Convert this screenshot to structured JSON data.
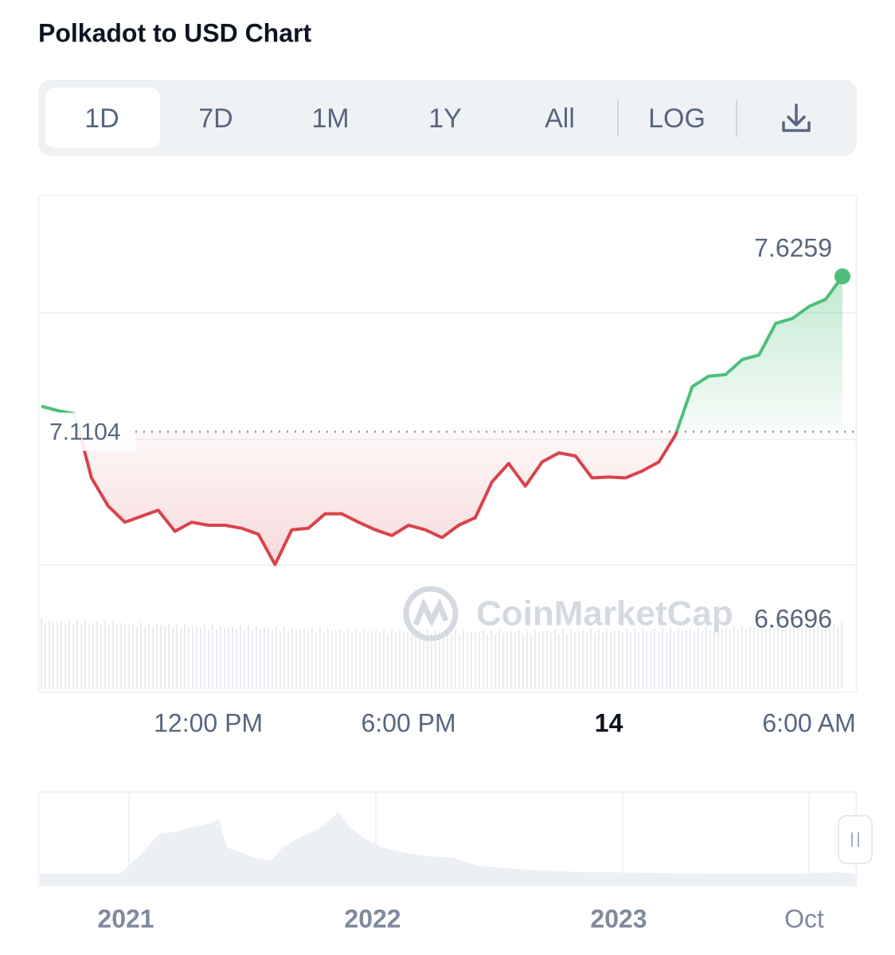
{
  "header": {
    "title": "Polkadot to USD Chart"
  },
  "toolbar": {
    "tabs": [
      "1D",
      "7D",
      "1M",
      "1Y",
      "All"
    ],
    "active": 0,
    "log": "LOG"
  },
  "chart_data": {
    "type": "line",
    "watermark": "CoinMarketCap",
    "categories": [
      null,
      null,
      null,
      null,
      null,
      null,
      null,
      null,
      null,
      null,
      "12:00 PM",
      null,
      null,
      null,
      null,
      null,
      null,
      null,
      null,
      null,
      null,
      null,
      "6:00 PM",
      null,
      null,
      null,
      null,
      null,
      null,
      null,
      null,
      null,
      null,
      null,
      "14",
      null,
      null,
      null,
      null,
      null,
      null,
      null,
      null,
      null,
      null,
      null,
      "6:00 AM",
      null,
      null
    ],
    "series": [
      {
        "up_color": "#4dbf7a",
        "down_color": "#d9434b",
        "values": [
          7.195,
          7.18,
          7.17,
          6.957,
          6.864,
          6.81,
          6.83,
          6.85,
          6.78,
          6.81,
          6.8,
          6.8,
          6.79,
          6.77,
          6.6696,
          6.785,
          6.79,
          6.838,
          6.838,
          6.81,
          6.785,
          6.766,
          6.8,
          6.785,
          6.759,
          6.8,
          6.825,
          6.944,
          7.005,
          6.93,
          7.01,
          7.04,
          7.03,
          6.957,
          6.96,
          6.957,
          6.98,
          7.01,
          7.1,
          7.26,
          7.295,
          7.3,
          7.35,
          7.365,
          7.47,
          7.486,
          7.526,
          7.55,
          7.6259
        ]
      }
    ],
    "baseline": 7.1104,
    "ylim": [
      6.248,
      7.896
    ]
  },
  "navigator": {
    "labels": [
      "2021",
      "2022",
      "2023",
      "Oct"
    ]
  }
}
